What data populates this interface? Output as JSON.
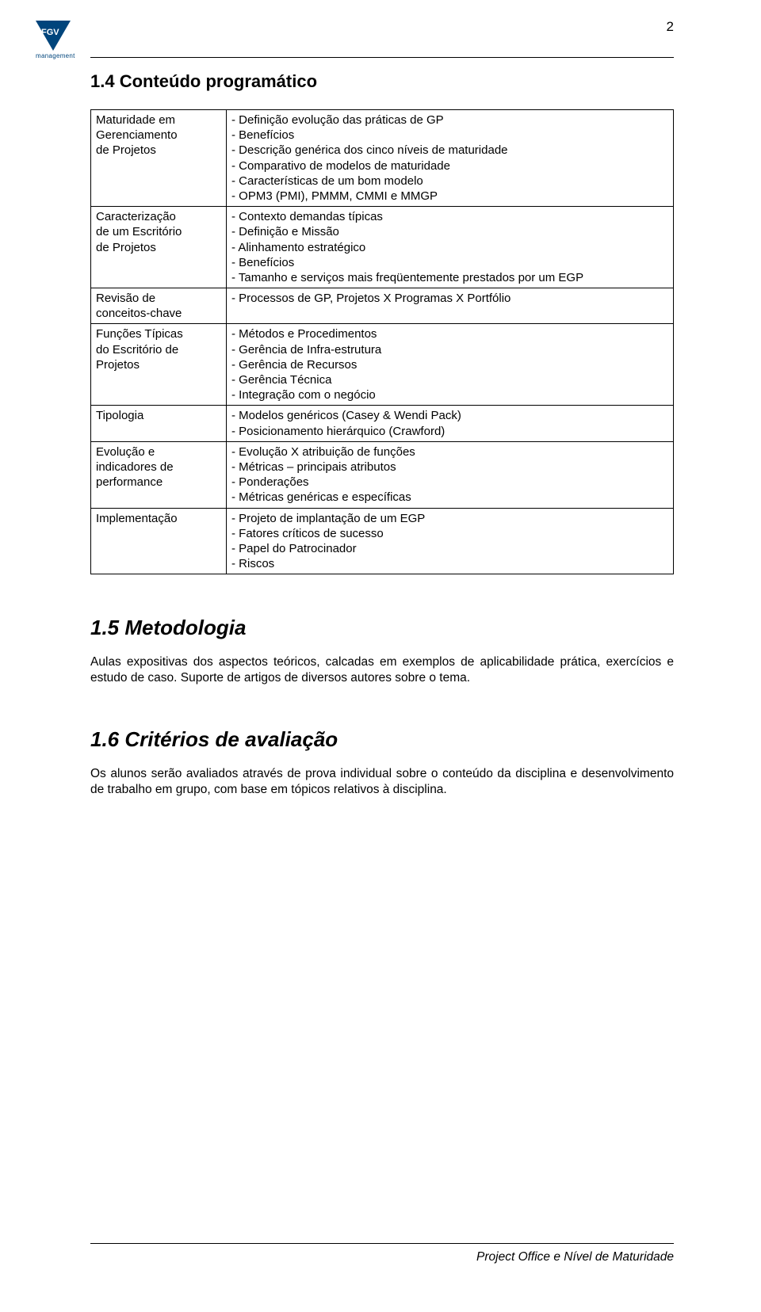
{
  "page_number": "2",
  "logo": {
    "initials": "FGV",
    "subtitle": "management"
  },
  "section14_title": "1.4 Conteúdo programático",
  "table": {
    "rows": [
      {
        "left": "Maturidade em\nGerenciamento\nde Projetos",
        "right": "- Definição evolução das práticas de GP\n- Benefícios\n- Descrição genérica dos cinco níveis de maturidade\n- Comparativo de modelos de maturidade\n- Características de um bom modelo\n- OPM3 (PMI), PMMM, CMMI e MMGP"
      },
      {
        "left": "Caracterização\nde um Escritório\nde Projetos",
        "right": "- Contexto demandas típicas\n- Definição e Missão\n- Alinhamento estratégico\n- Benefícios\n- Tamanho e serviços mais freqüentemente prestados por um EGP"
      },
      {
        "left": "Revisão de\nconceitos-chave",
        "right": "- Processos de GP, Projetos X Programas X Portfólio"
      },
      {
        "left": "Funções Típicas\ndo Escritório de\nProjetos",
        "right": "- Métodos e Procedimentos\n- Gerência de Infra-estrutura\n- Gerência de Recursos\n- Gerência Técnica\n- Integração com o negócio"
      },
      {
        "left": "Tipologia",
        "right": "- Modelos genéricos (Casey & Wendi Pack)\n- Posicionamento hierárquico (Crawford)"
      },
      {
        "left": "Evolução e\nindicadores de\nperformance",
        "right": "- Evolução X atribuição de funções\n- Métricas – principais atributos\n- Ponderações\n- Métricas genéricas e específicas"
      },
      {
        "left": "Implementação",
        "right": "- Projeto de implantação de um EGP\n- Fatores críticos de sucesso\n- Papel do Patrocinador\n- Riscos"
      }
    ]
  },
  "section15_title": "1.5 Metodologia",
  "section15_body": "Aulas expositivas dos aspectos teóricos, calcadas em exemplos de aplicabilidade prática, exercícios e estudo de caso. Suporte de artigos de diversos autores sobre o tema.",
  "section16_title": "1.6 Critérios de avaliação",
  "section16_body": "Os alunos serão avaliados através de prova individual sobre o conteúdo da disciplina e desenvolvimento de trabalho em grupo, com base em tópicos relativos à disciplina.",
  "footer": "Project Office e Nível de Maturidade"
}
